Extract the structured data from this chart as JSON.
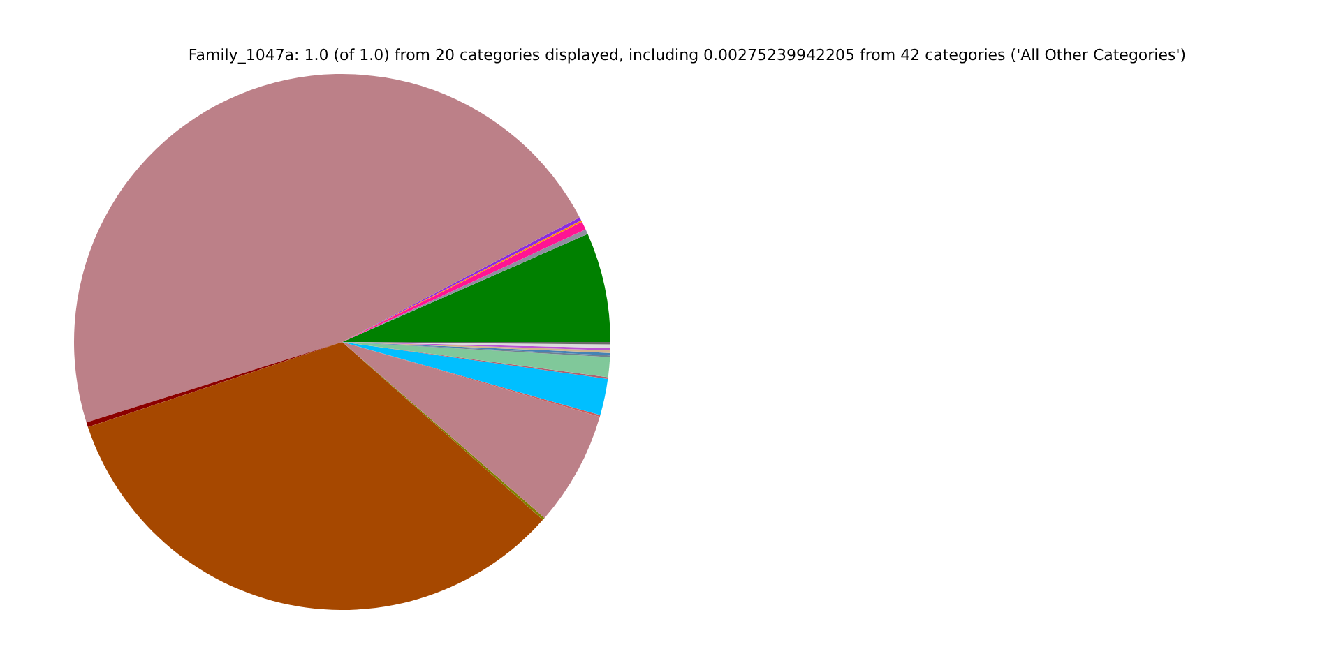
{
  "chart_data": {
    "type": "pie",
    "title": "Family_1047a: 1.0 (of 1.0) from 20 categories displayed, including 0.00275239942205 from 42 categories ('All Other Categories')",
    "categories": [
      null,
      null,
      null,
      null,
      null,
      null,
      null,
      null,
      null,
      null,
      null,
      null,
      null,
      null,
      null,
      null,
      null,
      null,
      null,
      null
    ],
    "values": [
      6.6,
      0.3,
      0.5,
      0.1,
      0.2,
      47.15,
      0.3,
      33.3,
      0.15,
      6.9,
      0.1,
      2.2,
      0.1,
      1.2,
      0.1,
      0.15,
      0.15,
      0.15,
      0.2,
      0.15
    ],
    "colors": [
      "#008000",
      "#8f8fa0",
      "#ff1493",
      "#ff8c00",
      "#8a2be2",
      "#bc8088",
      "#8b0000",
      "#a64800",
      "#808000",
      "#bc8088",
      "#cd5c5c",
      "#00bfff",
      "#b06070",
      "#80c89a",
      "#708090",
      "#4682b4",
      "#d2b48c",
      "#ba55d3",
      "#dcdcdc",
      "#696969"
    ]
  }
}
